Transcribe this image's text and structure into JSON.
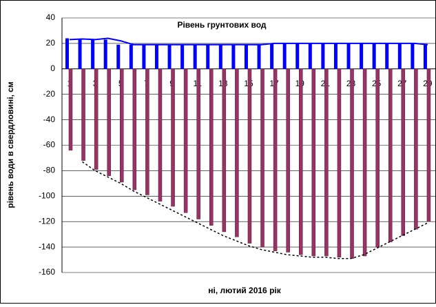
{
  "chart_data": {
    "type": "bar",
    "title": "Рівень грунтових вод",
    "y_label": "рівень води в свердловині, см",
    "x_label": "ні, лютий 2016 рік",
    "categories": [
      1,
      null,
      3,
      null,
      5,
      null,
      7,
      null,
      9,
      null,
      11,
      null,
      13,
      null,
      15,
      null,
      17,
      null,
      19,
      null,
      21,
      null,
      23,
      null,
      25,
      null,
      27,
      null,
      29
    ],
    "series": [
      {
        "kind": "bar",
        "color": "#0000ff",
        "values": [
          24,
          23,
          23,
          23,
          19,
          19,
          19,
          19,
          19,
          19,
          19,
          19,
          19,
          19,
          19,
          19,
          20,
          20,
          20,
          20,
          20,
          20,
          20,
          20,
          20,
          20,
          20,
          20,
          19
        ]
      },
      {
        "kind": "bar",
        "color": "#993366",
        "values": [
          -64,
          -72,
          -79,
          -84,
          -89,
          -95,
          -99,
          -104,
          -108,
          -113,
          -118,
          -123,
          -128,
          -132,
          -137,
          -140,
          -143,
          -144,
          -146,
          -147,
          -147,
          -148,
          -149,
          -147,
          -140,
          -136,
          -131,
          -126,
          -120
        ]
      },
      {
        "kind": "line",
        "color": "#0000ff",
        "dashed": false,
        "values": [
          23,
          23.5,
          23,
          24,
          22,
          19,
          19,
          19,
          19,
          19,
          19,
          19,
          19,
          19,
          19,
          19,
          20,
          20,
          20,
          20,
          20,
          20,
          20,
          20,
          20,
          20,
          20,
          20,
          19
        ]
      },
      {
        "kind": "line",
        "color": "#000000",
        "dashed": true,
        "values": [
          null,
          -73,
          -80,
          -85,
          -90,
          -96,
          -101,
          -106,
          -111,
          -116,
          -121,
          -126,
          -131,
          -135,
          -139,
          -142,
          -144,
          -146,
          -147,
          -148,
          -148,
          -149,
          -149,
          -146,
          -141,
          -136,
          -131,
          -126,
          -121
        ]
      }
    ],
    "ylim": [
      -160,
      40
    ],
    "yticks": [
      -160,
      -140,
      -120,
      -100,
      -80,
      -60,
      -40,
      -20,
      0,
      20,
      40
    ],
    "grid": true
  }
}
